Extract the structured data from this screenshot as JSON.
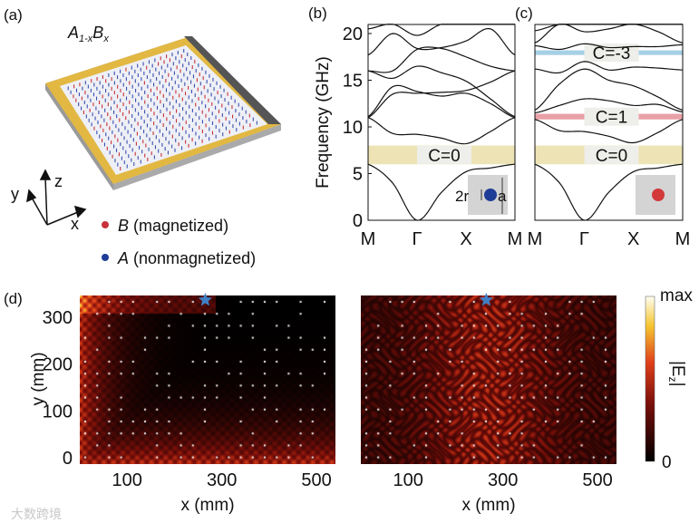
{
  "panel_labels": {
    "a": "(a)",
    "b": "(b)",
    "c": "(c)",
    "d": "(d)"
  },
  "panel_a": {
    "title_A": "A",
    "title_sub1": "1-x",
    "title_B": "B",
    "title_sub2": "x",
    "axes": {
      "x": "x",
      "y": "y",
      "z": "z"
    },
    "legend": [
      {
        "symbol": "B",
        "text": " (magnetized)",
        "color": "#c8323a"
      },
      {
        "symbol": "A",
        "text": " (nonmagnetized)",
        "color": "#1f3c96"
      }
    ]
  },
  "chart_data": [
    {
      "type": "line",
      "title": "(b)",
      "ylabel": "Frequency (GHz)",
      "ylim": [
        0,
        21
      ],
      "yticks": [
        "0",
        "5",
        "10",
        "15",
        "20"
      ],
      "xticks": [
        "M",
        "Γ",
        "X",
        "M"
      ],
      "k": [
        0,
        0.5,
        1,
        1.5,
        2,
        2.5,
        3
      ],
      "bands": [
        [
          6,
          4,
          0,
          3,
          5.2,
          5.6,
          6
        ],
        [
          11,
          9.3,
          9.2,
          8.8,
          8.2,
          9.5,
          11
        ],
        [
          11,
          13.5,
          13.6,
          13.7,
          13.9,
          14.8,
          16
        ],
        [
          11.1,
          14.3,
          13.8,
          13.3,
          13.6,
          12.5,
          11
        ],
        [
          16,
          15.2,
          16.5,
          15.8,
          14.9,
          13,
          11.1
        ],
        [
          16,
          16,
          18.3,
          18.4,
          17.5,
          16.5,
          16
        ],
        [
          17.7,
          20,
          18.4,
          18.5,
          19.2,
          20.5,
          17.7
        ],
        [
          20.5,
          21,
          19.8,
          21,
          21,
          21,
          21
        ]
      ],
      "gaps": [
        {
          "range": [
            6,
            8
          ],
          "label": "C=0",
          "color": "#ede3b4"
        }
      ],
      "inset": {
        "r_label": "2r",
        "a_label": "a",
        "dot_color": "#1f3c96"
      }
    },
    {
      "type": "line",
      "title": "(c)",
      "ylim": [
        0,
        21
      ],
      "xticks": [
        "M",
        "Γ",
        "X",
        "M"
      ],
      "k": [
        0,
        0.5,
        1,
        1.5,
        2,
        2.5,
        3
      ],
      "bands": [
        [
          6,
          4,
          0,
          3,
          5.2,
          5.6,
          6
        ],
        [
          10.8,
          9.6,
          9.5,
          9,
          8.3,
          9.4,
          10.8
        ],
        [
          11.5,
          12.3,
          13,
          12.8,
          12.3,
          12.4,
          11.6
        ],
        [
          11.8,
          14.6,
          16.2,
          15,
          14.4,
          13.2,
          11.8
        ],
        [
          16.2,
          15.8,
          17,
          16.1,
          16.4,
          16.3,
          16.1
        ],
        [
          18.7,
          18.3,
          18.9,
          18.5,
          18.6,
          18.6,
          18.8
        ],
        [
          19,
          21,
          20.2,
          20.5,
          21,
          20.2,
          19
        ],
        [
          20.3,
          21,
          21,
          21,
          21,
          21,
          21
        ]
      ],
      "gaps": [
        {
          "range": [
            6,
            8
          ],
          "label": "C=0",
          "color": "#ede3b4"
        },
        {
          "range": [
            10.8,
            11.4
          ],
          "label": "C=1",
          "color": "#e8a0a6"
        },
        {
          "range": [
            17.7,
            18.2
          ],
          "label": "C=-3",
          "color": "#a6d0e6"
        }
      ],
      "inset": {
        "dot_color": "#d23a3a"
      }
    },
    {
      "type": "heatmap",
      "title": "(d) left",
      "xlabel": "x (mm)",
      "ylabel": "y (mm)",
      "xticks": [
        "100",
        "300",
        "500"
      ],
      "yticks": [
        "0",
        "100",
        "200",
        "300"
      ],
      "xlim": [
        0,
        540
      ],
      "ylim": [
        0,
        350
      ],
      "source_x": 265,
      "source_y": 340,
      "pattern": "edge-localized"
    },
    {
      "type": "heatmap",
      "title": "(d) right",
      "xlabel": "x (mm)",
      "xticks": [
        "100",
        "300",
        "500"
      ],
      "xlim": [
        0,
        540
      ],
      "ylim": [
        0,
        350
      ],
      "source_x": 265,
      "source_y": 340,
      "pattern": "bulk-scattered"
    }
  ],
  "colorbar": {
    "max_label": "max",
    "min_label": "0",
    "quantity": "|E",
    "sub": "z",
    "close": "|"
  },
  "watermark": "大数跨境"
}
